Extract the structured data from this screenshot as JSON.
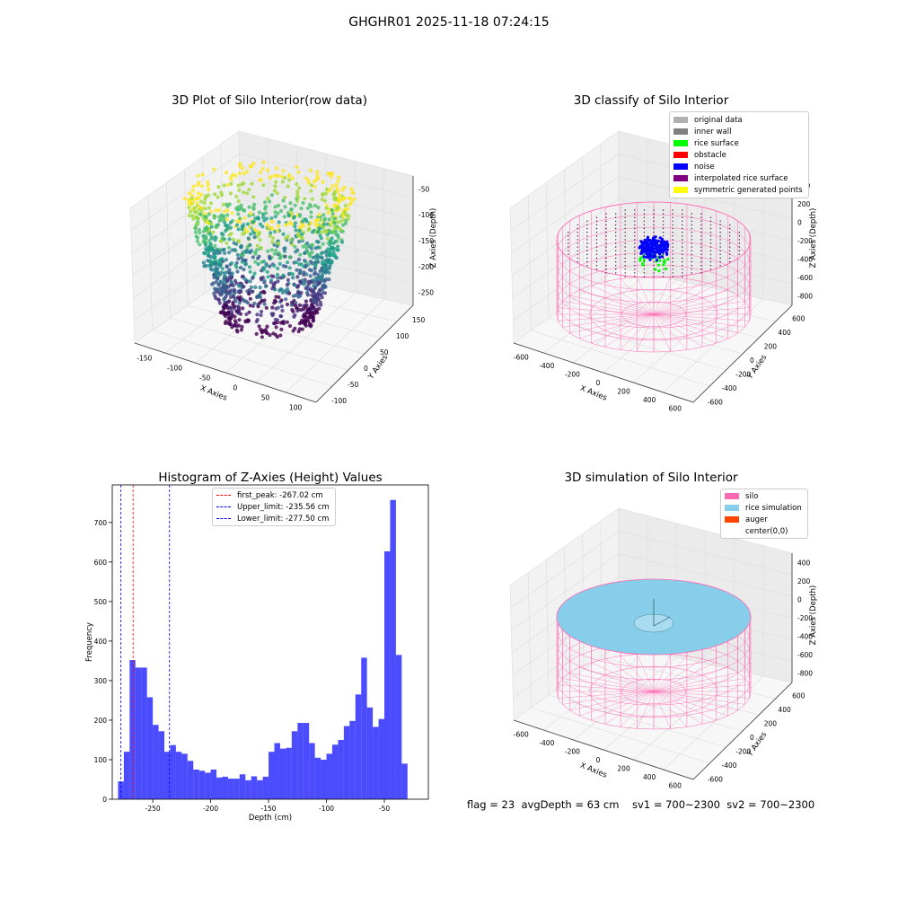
{
  "suptitle": "GHGHR01 2025-11-18 07:24:15",
  "footer": "flag = 23  avgDepth = 63 cm    sv1 = 700~2300  sv2 = 700~2300",
  "chart_data": [
    {
      "type": "scatter",
      "title": "3D Plot of Silo Interior(row data)",
      "xlabel": "X Axies",
      "ylabel": "Y Axies",
      "zlabel": "Z Axies (Depth)",
      "x_ticks": [
        "-150",
        "-100",
        "-50",
        "0",
        "50",
        "100"
      ],
      "y_ticks": [
        "-100",
        "-50",
        "0",
        "50",
        "100",
        "150"
      ],
      "z_ticks": [
        "-50",
        "-100",
        "-150",
        "-200",
        "-250"
      ],
      "xlim": [
        -160,
        120
      ],
      "ylim": [
        -110,
        160
      ],
      "zlim": [
        -290,
        -30
      ],
      "colormap": "viridis"
    },
    {
      "type": "scatter",
      "title": "3D classify of Silo Interior",
      "xlabel": "X Axies",
      "ylabel": "Y Axies",
      "zlabel": "Z Axies (Depth)",
      "x_ticks": [
        "-600",
        "-400",
        "-200",
        "0",
        "200",
        "400",
        "600"
      ],
      "y_ticks": [
        "-600",
        "-400",
        "-200",
        "0",
        "200",
        "400",
        "600"
      ],
      "z_ticks": [
        "400",
        "200",
        "0",
        "-200",
        "-400",
        "-600",
        "-800"
      ],
      "legend": [
        {
          "label": "original data",
          "color": "#b0b0b0"
        },
        {
          "label": "inner wall",
          "color": "#808080"
        },
        {
          "label": "rice surface",
          "color": "#00ff00"
        },
        {
          "label": "obstacle",
          "color": "#ff0000"
        },
        {
          "label": "noise",
          "color": "#0000ff"
        },
        {
          "label": "interpolated rice surface",
          "color": "#800080"
        },
        {
          "label": "symmetric generated points",
          "color": "#ffff00"
        }
      ]
    },
    {
      "type": "bar",
      "title": "Histogram of Z-Axies (Height) Values",
      "xlabel": "Depth (cm)",
      "ylabel": "Frequency",
      "xlim": [
        -285,
        -12
      ],
      "ylim": [
        0,
        795
      ],
      "x_ticks": [
        -250,
        -200,
        -150,
        -100,
        -50
      ],
      "y_ticks": [
        0,
        100,
        200,
        300,
        400,
        500,
        600,
        700
      ],
      "bar_color": "#0000ff",
      "bins_start": -280,
      "bin_width": 5,
      "values": [
        45,
        120,
        352,
        333,
        333,
        258,
        188,
        172,
        120,
        137,
        120,
        115,
        97,
        75,
        72,
        67,
        75,
        55,
        57,
        52,
        52,
        63,
        48,
        58,
        48,
        57,
        120,
        142,
        128,
        130,
        172,
        193,
        193,
        142,
        105,
        100,
        115,
        138,
        150,
        185,
        198,
        265,
        358,
        232,
        183,
        203,
        627,
        757,
        365,
        90
      ],
      "vlines": [
        {
          "x": -267.02,
          "label": "first_peak: -267.02 cm",
          "color": "#ff0000"
        },
        {
          "x": -235.56,
          "label": "Upper_limit: -235.56 cm",
          "color": "#0000ff"
        },
        {
          "x": -277.5,
          "label": "Lower_limit: -277.50 cm",
          "color": "#0000ff"
        }
      ]
    },
    {
      "type": "scatter",
      "title": "3D simulation of Silo Interior",
      "xlabel": "X Axies",
      "ylabel": "Y Axies",
      "zlabel": "Z Axies (Depth)",
      "x_ticks": [
        "-600",
        "-400",
        "-200",
        "0",
        "200",
        "400",
        "600"
      ],
      "y_ticks": [
        "-600",
        "-400",
        "-200",
        "0",
        "200",
        "400",
        "600"
      ],
      "z_ticks": [
        "400",
        "200",
        "0",
        "-200",
        "-400",
        "-600",
        "-800"
      ],
      "legend": [
        {
          "label": "silo",
          "color": "#ff69b4"
        },
        {
          "label": "rice simulation",
          "color": "#87ceeb"
        },
        {
          "label": "auger",
          "color": "#ff4500"
        },
        {
          "label": "center(0,0)",
          "color": "#ffffff"
        }
      ]
    }
  ]
}
